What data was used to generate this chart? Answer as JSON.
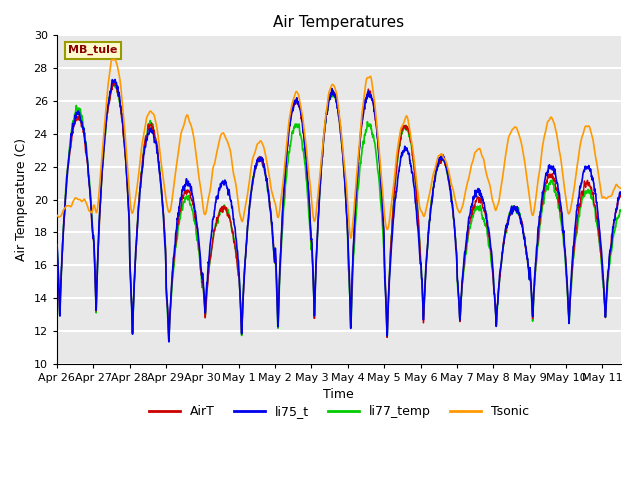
{
  "title": "Air Temperatures",
  "xlabel": "Time",
  "ylabel": "Air Temperature (C)",
  "ylim": [
    10,
    30
  ],
  "xlim_start": 0,
  "xlim_end": 15.5,
  "plot_bg_color": "#e8e8e8",
  "grid_color": "white",
  "colors": {
    "AirT": "#cc0000",
    "li75_t": "#0000ee",
    "li77_temp": "#00cc00",
    "Tsonic": "#ff9900"
  },
  "site_label": "MB_tule",
  "yticks": [
    10,
    12,
    14,
    16,
    18,
    20,
    22,
    24,
    26,
    28,
    30
  ],
  "xtick_labels": [
    "Apr 26",
    "Apr 27",
    "Apr 28",
    "Apr 29",
    "Apr 30",
    "May 1",
    "May 2",
    "May 3",
    "May 4",
    "May 5",
    "May 6",
    "May 7",
    "May 8",
    "May 9",
    "May 10",
    "May 11"
  ],
  "title_fontsize": 11,
  "axis_fontsize": 9,
  "tick_fontsize": 8
}
